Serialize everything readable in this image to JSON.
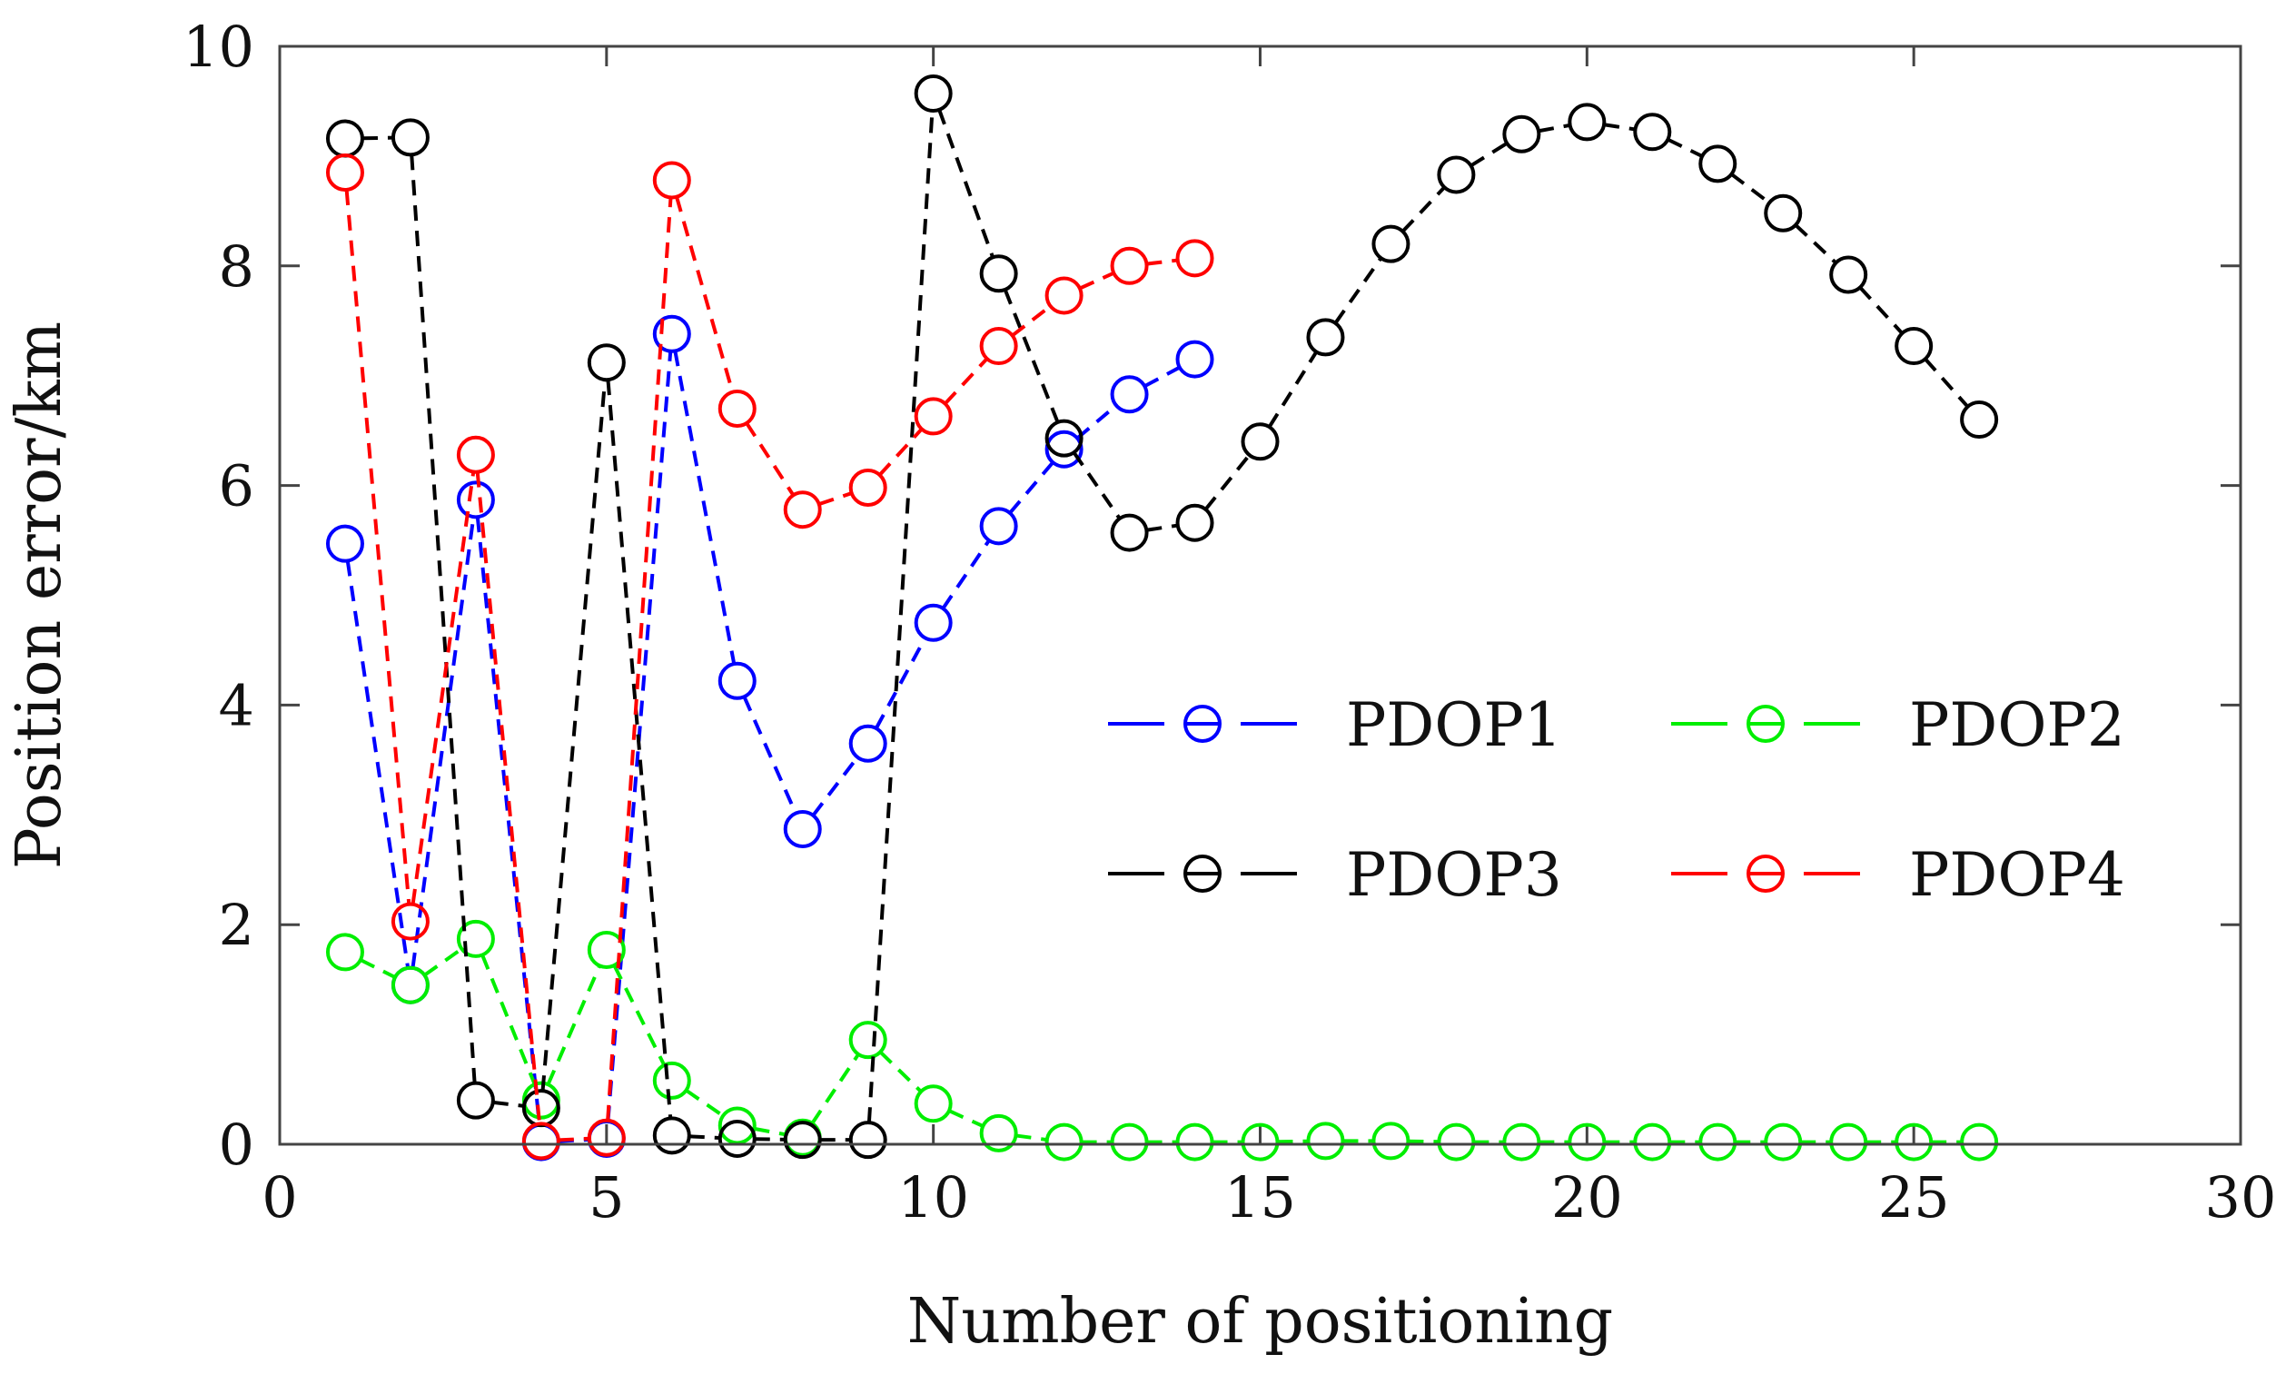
{
  "chart_data": {
    "type": "line",
    "title": "",
    "xlabel": "Number of positioning",
    "ylabel": "Position error/km",
    "xlim": [
      0,
      30
    ],
    "ylim": [
      0,
      10
    ],
    "xticks": [
      0,
      5,
      10,
      15,
      20,
      25,
      30
    ],
    "yticks": [
      0,
      2,
      4,
      6,
      8,
      10
    ],
    "grid": false,
    "legend_position": "right",
    "series": [
      {
        "name": "PDOP1",
        "color": "#0000ff",
        "x": [
          1,
          2,
          3,
          4,
          5,
          6,
          7,
          8,
          9,
          10,
          11,
          12,
          13,
          14
        ],
        "values": [
          5.47,
          1.45,
          5.87,
          0.02,
          0.05,
          7.38,
          4.22,
          2.87,
          3.65,
          4.75,
          5.63,
          6.33,
          6.83,
          7.15
        ]
      },
      {
        "name": "PDOP2",
        "color": "#00ee00",
        "x": [
          1,
          2,
          3,
          4,
          5,
          6,
          7,
          8,
          9,
          10,
          11,
          12,
          13,
          14,
          15,
          16,
          17,
          18,
          19,
          20,
          21,
          22,
          23,
          24,
          25,
          26
        ],
        "values": [
          1.75,
          1.45,
          1.87,
          0.4,
          1.77,
          0.58,
          0.17,
          0.06,
          0.95,
          0.37,
          0.1,
          0.02,
          0.02,
          0.02,
          0.02,
          0.03,
          0.03,
          0.02,
          0.02,
          0.02,
          0.02,
          0.02,
          0.02,
          0.02,
          0.02,
          0.02
        ]
      },
      {
        "name": "PDOP3",
        "color": "#000000",
        "x": [
          1,
          2,
          3,
          4,
          5,
          6,
          7,
          8,
          9,
          10,
          11,
          12,
          13,
          14,
          15,
          16,
          17,
          18,
          19,
          20,
          21,
          22,
          23,
          24,
          25,
          26
        ],
        "values": [
          9.16,
          9.17,
          0.4,
          0.33,
          7.12,
          0.08,
          0.05,
          0.04,
          0.04,
          9.57,
          7.93,
          6.43,
          5.57,
          5.66,
          6.4,
          7.35,
          8.2,
          8.83,
          9.2,
          9.31,
          9.22,
          8.93,
          8.48,
          7.92,
          7.27,
          6.6
        ]
      },
      {
        "name": "PDOP4",
        "color": "#ff0000",
        "x": [
          1,
          2,
          3,
          4,
          5,
          6,
          7,
          8,
          9,
          10,
          11,
          12,
          13,
          14
        ],
        "values": [
          8.85,
          2.03,
          6.28,
          0.03,
          0.06,
          8.78,
          6.7,
          5.78,
          5.98,
          6.63,
          7.27,
          7.73,
          8.0,
          8.07
        ]
      }
    ]
  }
}
